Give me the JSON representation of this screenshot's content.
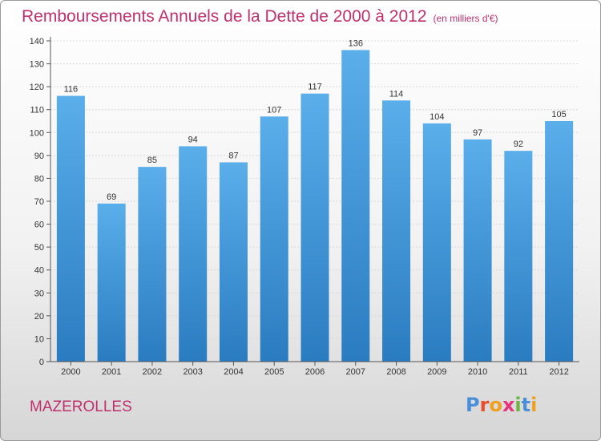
{
  "header": {
    "title": "Remboursements Annuels de la Dette de 2000 à 2012",
    "unit": "(en milliers d'€)"
  },
  "footer": {
    "place": "MAZEROLLES",
    "brand_letters": [
      "P",
      "r",
      "o",
      "x",
      "i",
      "t",
      "i"
    ]
  },
  "chart_data": {
    "type": "bar",
    "title": "Remboursements Annuels de la Dette de 2000 à 2012",
    "subtitle": "(en milliers d'€)",
    "categories": [
      "2000",
      "2001",
      "2002",
      "2003",
      "2004",
      "2005",
      "2006",
      "2007",
      "2008",
      "2009",
      "2010",
      "2011",
      "2012"
    ],
    "values": [
      116,
      69,
      85,
      94,
      87,
      107,
      117,
      136,
      114,
      104,
      97,
      92,
      105
    ],
    "ylim": [
      0,
      140
    ],
    "yticks": [
      0,
      10,
      20,
      30,
      40,
      50,
      60,
      70,
      80,
      90,
      100,
      110,
      120,
      130,
      140
    ],
    "grid": true,
    "bar_color_top": "#5aaeea",
    "bar_color_bottom": "#2a7cc0",
    "title_color": "#c0306e"
  }
}
